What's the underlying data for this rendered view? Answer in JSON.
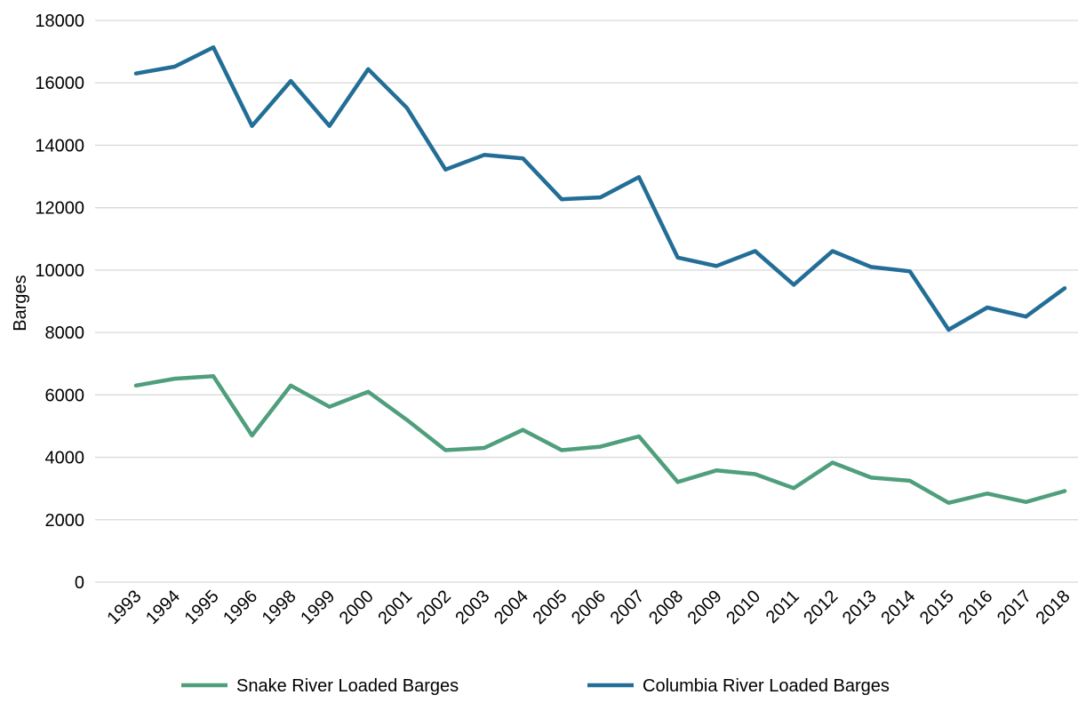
{
  "chart_data": {
    "type": "line",
    "title": "",
    "xlabel": "",
    "ylabel": "Barges",
    "ylim": [
      0,
      18000
    ],
    "yticks": [
      0,
      2000,
      4000,
      6000,
      8000,
      10000,
      12000,
      14000,
      16000,
      18000
    ],
    "grid": true,
    "legend_position": "bottom",
    "categories": [
      "1993",
      "1994",
      "1995",
      "1996",
      "1998",
      "1999",
      "2000",
      "2001",
      "2002",
      "2003",
      "2004",
      "2005",
      "2006",
      "2007",
      "2008",
      "2009",
      "2010",
      "2011",
      "2012",
      "2013",
      "2014",
      "2015",
      "2016",
      "2017",
      "2018"
    ],
    "series": [
      {
        "name": "Snake River Loaded Barges",
        "color": "#4f9e7c",
        "values": [
          6300,
          6520,
          6600,
          4700,
          6300,
          5620,
          6100,
          5200,
          4230,
          4300,
          4880,
          4230,
          4340,
          4670,
          3210,
          3580,
          3460,
          3010,
          3830,
          3350,
          3250,
          2540,
          2840,
          2570,
          2920
        ]
      },
      {
        "name": "Columbia River Loaded Barges",
        "color": "#236e96",
        "values": [
          16300,
          16520,
          17140,
          14620,
          16060,
          14620,
          16440,
          15200,
          13220,
          13690,
          13580,
          12270,
          12330,
          12980,
          10400,
          10130,
          10610,
          9530,
          10610,
          10100,
          9960,
          8090,
          8800,
          8510,
          9420
        ]
      }
    ]
  }
}
